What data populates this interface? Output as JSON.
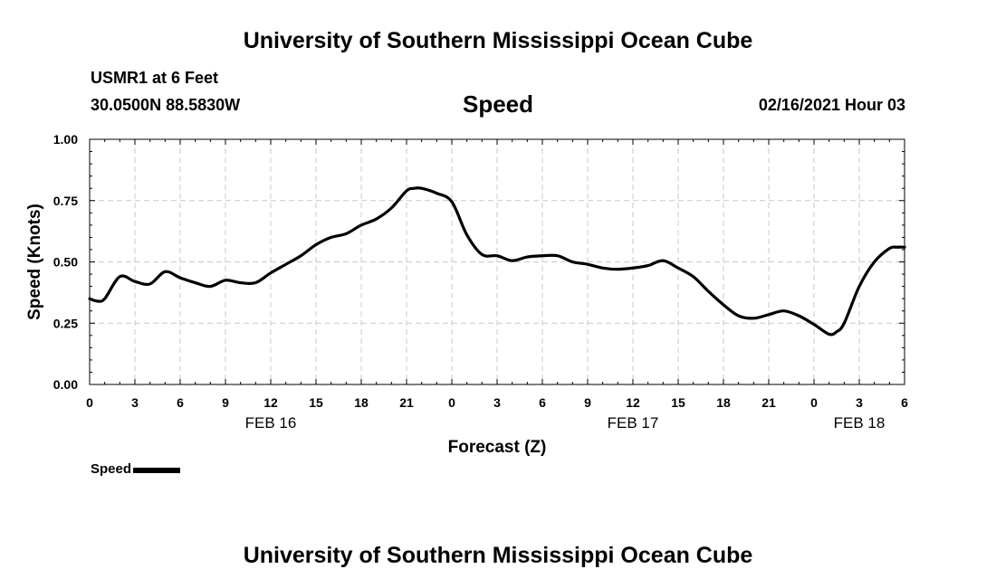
{
  "header": {
    "title": "University of Southern Mississippi Ocean Cube",
    "station": "USMR1 at 6 Feet",
    "coords": "30.0500N 88.5830W",
    "datetime": "02/16/2021 Hour 03"
  },
  "footer": {
    "title": "University of Southern Mississippi Ocean Cube"
  },
  "chart_data": {
    "type": "line",
    "title": "Speed",
    "xlabel": "Forecast (Z)",
    "ylabel": "Speed (Knots)",
    "ylim": [
      0,
      1
    ],
    "xlim": [
      0,
      54
    ],
    "grid": true,
    "legend": "bottom-left",
    "y_ticks": [
      {
        "value": 0.0,
        "label": "0.00"
      },
      {
        "value": 0.25,
        "label": "0.25"
      },
      {
        "value": 0.5,
        "label": "0.50"
      },
      {
        "value": 0.75,
        "label": "0.75"
      },
      {
        "value": 1.0,
        "label": "1.00"
      }
    ],
    "x_ticks": [
      {
        "hour": 0,
        "label": "0"
      },
      {
        "hour": 3,
        "label": "3"
      },
      {
        "hour": 6,
        "label": "6"
      },
      {
        "hour": 9,
        "label": "9"
      },
      {
        "hour": 12,
        "label": "12"
      },
      {
        "hour": 15,
        "label": "15"
      },
      {
        "hour": 18,
        "label": "18"
      },
      {
        "hour": 21,
        "label": "21"
      },
      {
        "hour": 24,
        "label": "0"
      },
      {
        "hour": 27,
        "label": "3"
      },
      {
        "hour": 30,
        "label": "6"
      },
      {
        "hour": 33,
        "label": "9"
      },
      {
        "hour": 36,
        "label": "12"
      },
      {
        "hour": 39,
        "label": "15"
      },
      {
        "hour": 42,
        "label": "18"
      },
      {
        "hour": 45,
        "label": "21"
      },
      {
        "hour": 48,
        "label": "0"
      },
      {
        "hour": 51,
        "label": "3"
      },
      {
        "hour": 54,
        "label": "6"
      }
    ],
    "date_labels": [
      {
        "hour": 12,
        "label": "FEB 16"
      },
      {
        "hour": 36,
        "label": "FEB 17"
      },
      {
        "hour": 51,
        "label": "FEB 18"
      }
    ],
    "series": [
      {
        "name": "Speed",
        "color": "#000000",
        "x": [
          0,
          0.5,
          1,
          2,
          3,
          4,
          5,
          6,
          7,
          8,
          9,
          10,
          11,
          12,
          13,
          14,
          15,
          16,
          17,
          18,
          19,
          20,
          21,
          21.5,
          22,
          23,
          24,
          25,
          26,
          27,
          28,
          29,
          30,
          31,
          32,
          33,
          34,
          35,
          36,
          37,
          38,
          39,
          40,
          41,
          42,
          43,
          44,
          45,
          46,
          47,
          48,
          49,
          49.5,
          50,
          51,
          52,
          53,
          53.5,
          54
        ],
        "values": [
          0.35,
          0.34,
          0.35,
          0.44,
          0.42,
          0.41,
          0.46,
          0.435,
          0.415,
          0.4,
          0.425,
          0.415,
          0.415,
          0.455,
          0.49,
          0.525,
          0.57,
          0.6,
          0.615,
          0.65,
          0.675,
          0.72,
          0.79,
          0.8,
          0.8,
          0.78,
          0.745,
          0.61,
          0.53,
          0.525,
          0.505,
          0.52,
          0.525,
          0.525,
          0.5,
          0.49,
          0.475,
          0.47,
          0.475,
          0.485,
          0.505,
          0.475,
          0.44,
          0.38,
          0.325,
          0.28,
          0.27,
          0.285,
          0.3,
          0.28,
          0.245,
          0.205,
          0.215,
          0.25,
          0.4,
          0.5,
          0.555,
          0.56,
          0.56
        ]
      }
    ]
  }
}
